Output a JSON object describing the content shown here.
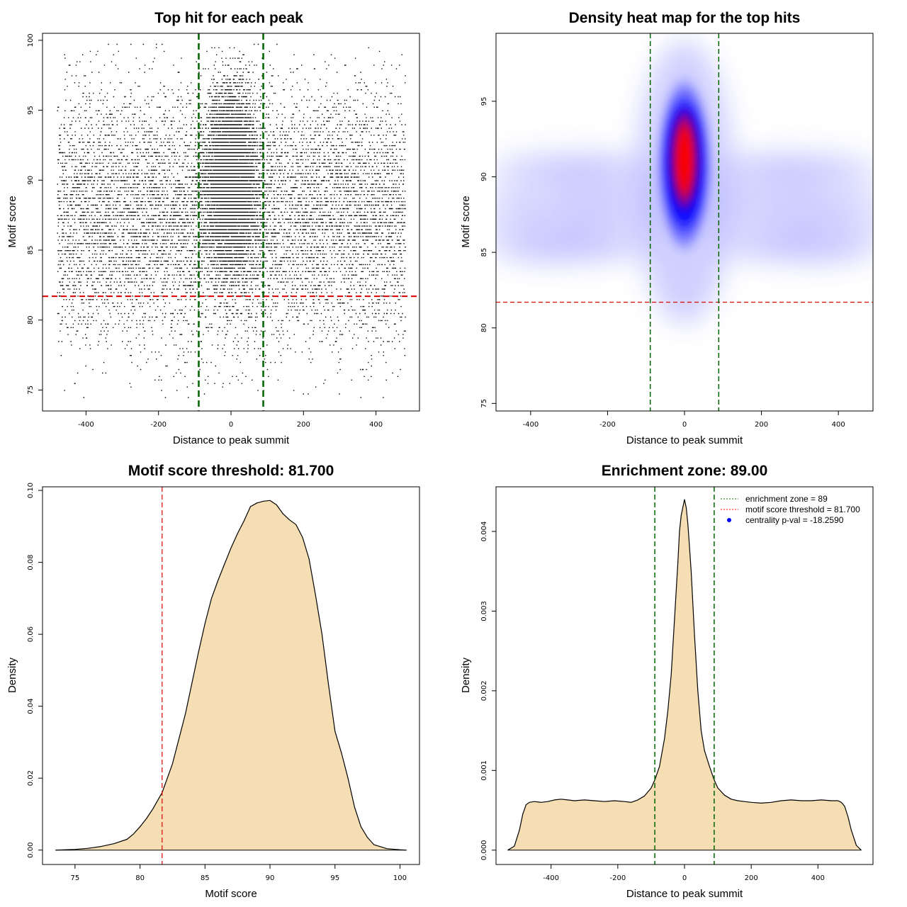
{
  "chart_data": [
    {
      "type": "scatter",
      "title": "Top hit for each peak",
      "xlabel": "Distance to peak summit",
      "ylabel": "Motif score",
      "xlim": [
        -520,
        520
      ],
      "ylim": [
        73.5,
        100.5
      ],
      "xticks": [
        -400,
        -200,
        0,
        200,
        400
      ],
      "yticks": [
        75,
        80,
        85,
        90,
        95,
        100
      ],
      "threshold_y": 81.7,
      "zone_x": [
        -89,
        89
      ],
      "background": {
        "x_range": [
          -480,
          480
        ],
        "y_mean": 87.5,
        "y_sd": 4.5
      },
      "center_cluster": {
        "x_mean": 0,
        "x_sd": 35,
        "y_mean": 90,
        "y_sd": 3.2
      },
      "colors": {
        "points": "#000000",
        "threshold": "#dd0000",
        "zone": "#006400"
      }
    },
    {
      "type": "heatmap",
      "title": "Density heat map for the top hits",
      "xlabel": "Distance to peak summit",
      "ylabel": "Motif score",
      "xlim": [
        -490,
        490
      ],
      "ylim": [
        74.5,
        99.5
      ],
      "xticks": [
        -400,
        -200,
        0,
        200,
        400
      ],
      "yticks": [
        75,
        80,
        85,
        90,
        95
      ],
      "threshold_y": 81.7,
      "zone_x": [
        -89,
        89
      ],
      "hotspot": {
        "x": 0,
        "y": 91.5
      },
      "colors": {
        "low": "#ffffff",
        "mid": "#0000ff",
        "high": "#ff0000",
        "threshold": "#dd0000",
        "zone": "#006400"
      }
    },
    {
      "type": "area",
      "title": "Motif score threshold: 81.700",
      "xlabel": "Motif score",
      "ylabel": "Density",
      "xlim": [
        72.5,
        101.5
      ],
      "ylim": [
        -0.004,
        0.101
      ],
      "xticks": [
        75,
        80,
        85,
        90,
        95,
        100
      ],
      "yticks": [
        "0.00",
        "0.02",
        "0.04",
        "0.06",
        "0.08",
        "0.10"
      ],
      "threshold_x": 81.7,
      "x": [
        73.5,
        75,
        76,
        77,
        78,
        79,
        79.5,
        80,
        80.5,
        81,
        81.7,
        82.5,
        83.5,
        84.5,
        85,
        85.5,
        86,
        86.5,
        87,
        87.5,
        88,
        88.5,
        89,
        89.5,
        90,
        90.5,
        91,
        91.5,
        92,
        92.5,
        93,
        93.5,
        94,
        94.5,
        95,
        95.5,
        96,
        96.5,
        97,
        97.5,
        98,
        99,
        100,
        100.5
      ],
      "values": [
        0.0,
        0.0002,
        0.0005,
        0.001,
        0.0018,
        0.003,
        0.0045,
        0.0065,
        0.0088,
        0.0115,
        0.016,
        0.024,
        0.038,
        0.055,
        0.063,
        0.07,
        0.075,
        0.0795,
        0.084,
        0.088,
        0.0915,
        0.0955,
        0.0965,
        0.097,
        0.0972,
        0.096,
        0.0935,
        0.0918,
        0.0905,
        0.087,
        0.081,
        0.071,
        0.06,
        0.046,
        0.033,
        0.027,
        0.02,
        0.012,
        0.0065,
        0.0035,
        0.0015,
        0.0004,
        0.0001,
        0.0
      ],
      "colors": {
        "fill": "#f5deb3",
        "line": "#000000",
        "threshold": "#dd0000"
      }
    },
    {
      "type": "area",
      "title": "Enrichment zone: 89.00",
      "xlabel": "Distance to peak summit",
      "ylabel": "Density",
      "xlim": [
        -565,
        565
      ],
      "ylim": [
        -0.00018,
        0.00456
      ],
      "xticks": [
        -400,
        -200,
        0,
        200,
        400
      ],
      "yticks": [
        "0.000",
        "0.001",
        "0.002",
        "0.003",
        "0.004"
      ],
      "zone_x": [
        -89,
        89
      ],
      "x": [
        -530,
        -510,
        -495,
        -485,
        -475,
        -465,
        -450,
        -430,
        -410,
        -390,
        -370,
        -350,
        -330,
        -300,
        -270,
        -240,
        -210,
        -180,
        -160,
        -140,
        -120,
        -100,
        -89,
        -75,
        -60,
        -50,
        -40,
        -30,
        -20,
        -15,
        -10,
        -5,
        0,
        5,
        10,
        15,
        20,
        30,
        40,
        50,
        60,
        75,
        89,
        100,
        120,
        140,
        160,
        180,
        200,
        230,
        260,
        290,
        320,
        350,
        380,
        410,
        440,
        460,
        470,
        480,
        490,
        500,
        515,
        530
      ],
      "values": [
        0.0,
        5e-05,
        0.00025,
        0.00045,
        0.00057,
        0.0006,
        0.00061,
        0.0006,
        0.00061,
        0.00063,
        0.00064,
        0.00063,
        0.00062,
        0.00063,
        0.00062,
        0.00061,
        0.00062,
        0.00061,
        0.0006,
        0.00063,
        0.00068,
        0.00078,
        0.00088,
        0.00105,
        0.0014,
        0.00175,
        0.0022,
        0.0029,
        0.0036,
        0.004,
        0.0042,
        0.0043,
        0.0044,
        0.0043,
        0.0041,
        0.0038,
        0.0035,
        0.0027,
        0.002,
        0.0015,
        0.00125,
        0.00105,
        0.00088,
        0.00078,
        0.00069,
        0.00064,
        0.00062,
        0.00061,
        0.0006,
        0.00059,
        0.0006,
        0.00062,
        0.00063,
        0.00062,
        0.00062,
        0.00063,
        0.00062,
        0.00062,
        0.0006,
        0.00055,
        0.00042,
        0.00025,
        6e-05,
        0.0
      ],
      "legend": [
        {
          "label": "enrichment zone = 89",
          "style": "dotted",
          "color": "#008000"
        },
        {
          "label": "motif score threshold = 81.700",
          "style": "dotted",
          "color": "#ff0000"
        },
        {
          "label": "centrality p-val = -18.2590",
          "style": "point",
          "color": "#0000ff"
        }
      ],
      "colors": {
        "fill": "#f5deb3",
        "line": "#000000",
        "zone": "#006400"
      }
    }
  ]
}
